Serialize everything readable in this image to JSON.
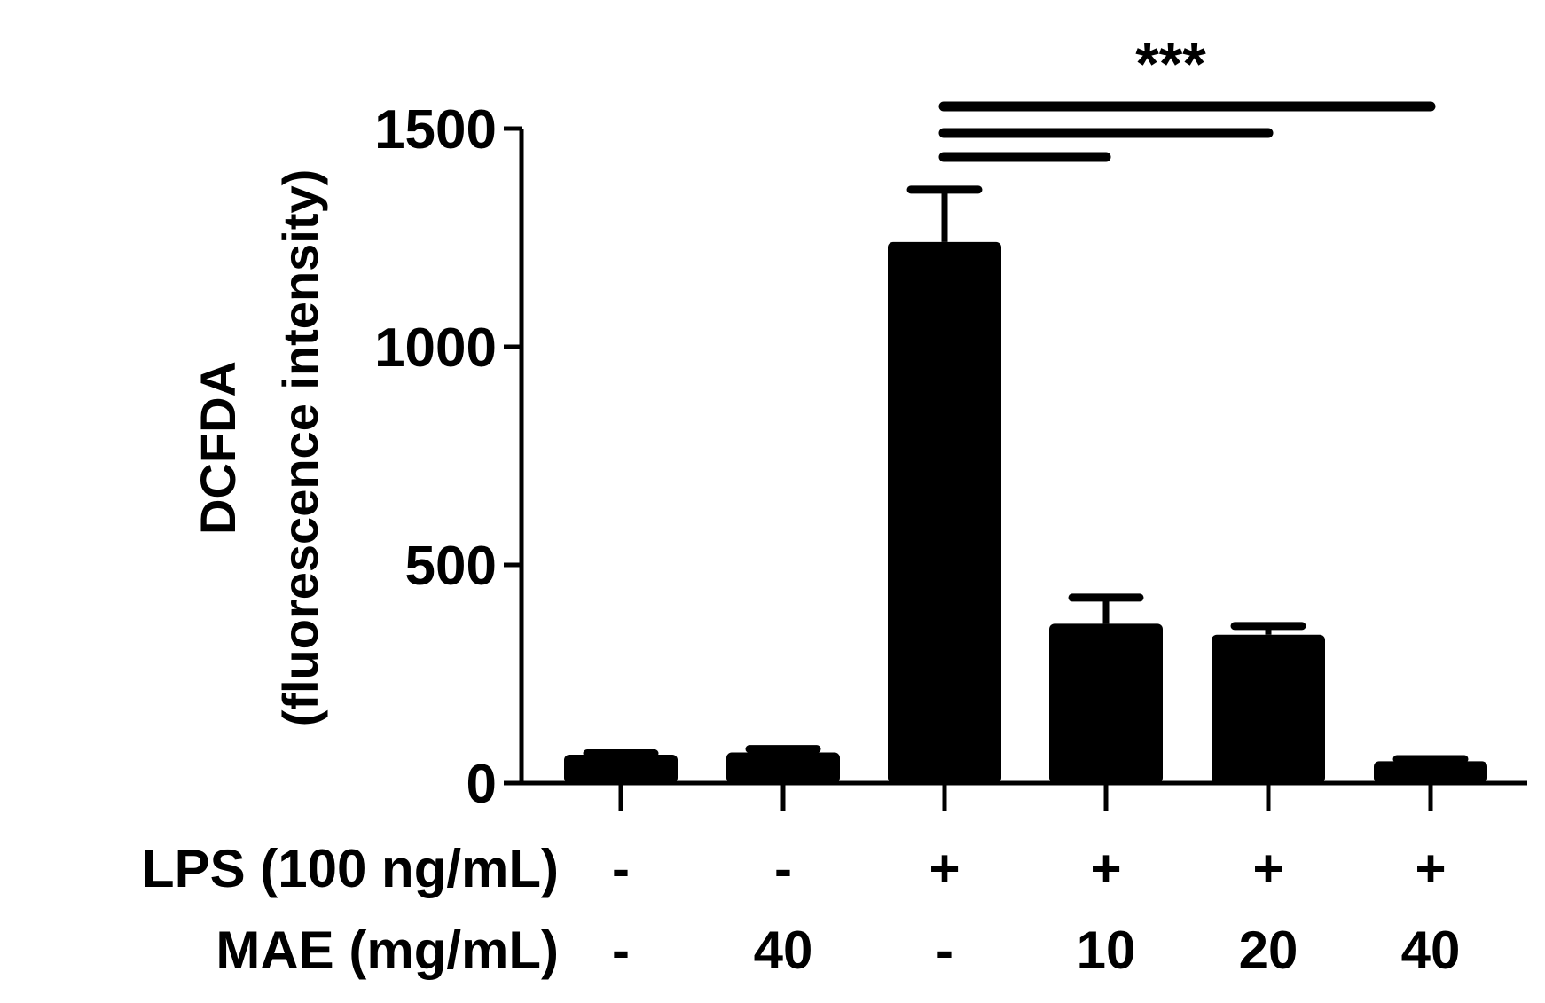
{
  "chart_data": {
    "type": "bar",
    "title": "",
    "xlabel": "",
    "ylabel_lines": [
      "DCFDA",
      "(fluorescence intensity)"
    ],
    "ylim": [
      0,
      1500
    ],
    "yticks": [
      0,
      500,
      1000,
      1500
    ],
    "ytick_labels": [
      "0",
      "500",
      "1000",
      "1500"
    ],
    "grid": false,
    "legend": "none",
    "bar_color": "#000000",
    "values": [
      65,
      70,
      1240,
      365,
      340,
      50
    ],
    "errors": [
      3,
      8,
      120,
      60,
      20,
      5
    ],
    "condition_rows": [
      {
        "label": "LPS (100 ng/mL)",
        "values": [
          "-",
          "-",
          "+",
          "+",
          "+",
          "+"
        ]
      },
      {
        "label": "MAE (mg/mL)",
        "values": [
          "-",
          "40",
          "-",
          "10",
          "20",
          "40"
        ]
      }
    ],
    "significance": {
      "label": "***",
      "reference_index": 2,
      "comparisons": [
        3,
        4,
        5
      ]
    }
  }
}
